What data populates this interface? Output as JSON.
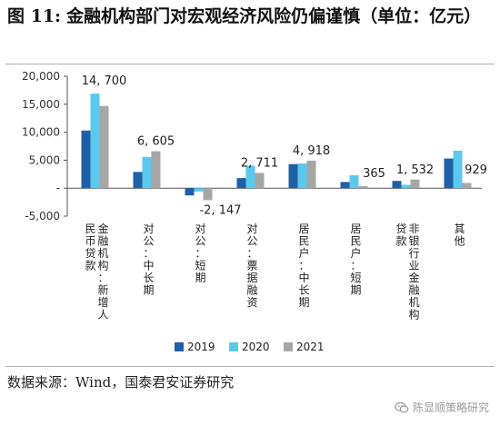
{
  "header": {
    "figure_label": "图 11:",
    "title": "金融机构部门对宏观经济风险仍偏谨慎（单位：亿元）"
  },
  "footer": {
    "source": "数据来源：Wind，国泰君安证券研究",
    "watermark": "陈显顺策略研究",
    "watermark_icon": "wechat-icon"
  },
  "colors": {
    "s2019": "#1f5fa6",
    "s2020": "#5bc8ee",
    "s2021": "#a6a6a6"
  },
  "chart_data": {
    "type": "bar",
    "title": "金融机构部门对宏观经济风险仍偏谨慎（单位：亿元）",
    "xlabel": "",
    "ylabel": "",
    "ylim": [
      -5000,
      20000
    ],
    "yticks": [
      -5000,
      0,
      5000,
      10000,
      15000,
      20000
    ],
    "ytick_labels": [
      "-5,000",
      "-",
      "5,000",
      "10,000",
      "15,000",
      "20,000"
    ],
    "grid": false,
    "legend_position": "bottom",
    "categories": [
      "金融机构：新增人民币贷款",
      "对公：中长期",
      "对公：短期",
      "对公：票据融资",
      "居民户：中长期",
      "居民户：短期",
      "非银行业金融机构贷款",
      "其他"
    ],
    "series": [
      {
        "name": "2019",
        "values": [
          10300,
          2900,
          -1300,
          1800,
          4300,
          1100,
          1300,
          5300
        ]
      },
      {
        "name": "2020",
        "values": [
          16900,
          5600,
          -600,
          4000,
          4400,
          2300,
          600,
          6700
        ]
      },
      {
        "name": "2021",
        "values": [
          14700,
          6605,
          -2147,
          2711,
          4918,
          365,
          1532,
          929
        ]
      }
    ],
    "data_labels": [
      {
        "category_index": 0,
        "series_index": 2,
        "text": "14, 700"
      },
      {
        "category_index": 1,
        "series_index": 2,
        "text": "6, 605"
      },
      {
        "category_index": 2,
        "series_index": 2,
        "text": "-2, 147"
      },
      {
        "category_index": 3,
        "series_index": 2,
        "text": "2, 711"
      },
      {
        "category_index": 4,
        "series_index": 2,
        "text": "4, 918"
      },
      {
        "category_index": 5,
        "series_index": 2,
        "text": "365"
      },
      {
        "category_index": 6,
        "series_index": 2,
        "text": "1, 532"
      },
      {
        "category_index": 7,
        "series_index": 2,
        "text": "929"
      }
    ]
  }
}
